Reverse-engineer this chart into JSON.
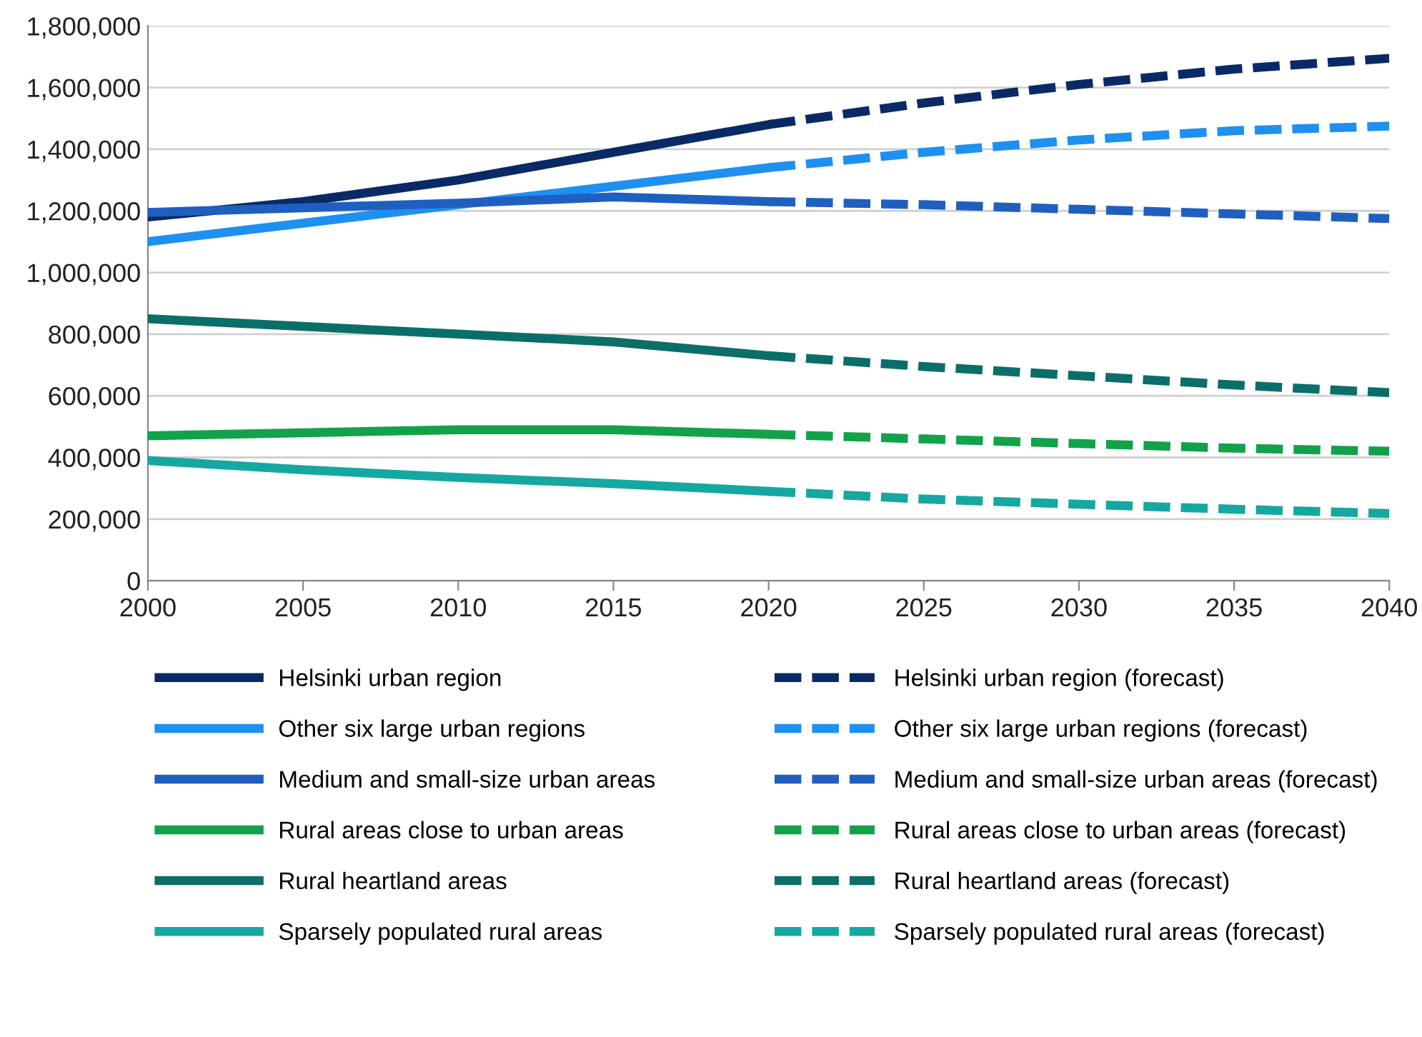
{
  "chart_data": {
    "type": "line",
    "xlim": [
      2000,
      2040
    ],
    "xticks": [
      2000,
      2005,
      2010,
      2015,
      2020,
      2025,
      2030,
      2035,
      2040
    ],
    "ylim": [
      0,
      1800000
    ],
    "yticks": [
      0,
      {
        "value": 200000,
        "label": "200,000"
      },
      {
        "value": 400000,
        "label": "400,000"
      },
      {
        "value": 600000,
        "label": "600,000"
      },
      {
        "value": 800000,
        "label": "800,000"
      },
      {
        "value": 1000000,
        "label": "1,000,000"
      },
      {
        "value": 1200000,
        "label": "1,200,000"
      },
      {
        "value": 1400000,
        "label": "1,400,000"
      },
      {
        "value": 1600000,
        "label": "1,600,000"
      },
      {
        "value": 1800000,
        "label": "1,800,000"
      }
    ],
    "grid": "y",
    "legend": "bottom",
    "marker": "none",
    "series": [
      {
        "name": "Helsinki urban region",
        "color": "#0a2a66",
        "line_style": "solid",
        "x": [
          2000,
          2005,
          2010,
          2015,
          2020
        ],
        "values": [
          1180000,
          1230000,
          1300000,
          1390000,
          1480000
        ]
      },
      {
        "name": "Other six large urban regions",
        "color": "#1e90f0",
        "line_style": "solid",
        "x": [
          2000,
          2005,
          2010,
          2015,
          2020
        ],
        "values": [
          1100000,
          1160000,
          1220000,
          1280000,
          1340000
        ]
      },
      {
        "name": "Medium and small-size urban areas",
        "color": "#1f5fc0",
        "line_style": "solid",
        "x": [
          2000,
          2005,
          2010,
          2015,
          2020
        ],
        "values": [
          1195000,
          1210000,
          1225000,
          1245000,
          1230000
        ]
      },
      {
        "name": "Rural areas close to urban areas",
        "color": "#12a24a",
        "line_style": "solid",
        "x": [
          2000,
          2005,
          2010,
          2015,
          2020
        ],
        "values": [
          470000,
          480000,
          490000,
          490000,
          475000
        ]
      },
      {
        "name": "Rural heartland areas",
        "color": "#0b6e68",
        "line_style": "solid",
        "x": [
          2000,
          2005,
          2010,
          2015,
          2020
        ],
        "values": [
          850000,
          825000,
          800000,
          775000,
          730000
        ]
      },
      {
        "name": "Sparsely populated rural areas",
        "color": "#14a8a0",
        "line_style": "solid",
        "x": [
          2000,
          2005,
          2010,
          2015,
          2020
        ],
        "values": [
          390000,
          360000,
          335000,
          315000,
          290000
        ]
      },
      {
        "name": "Helsinki urban region (forecast)",
        "color": "#0a2a66",
        "line_style": "dashed",
        "x": [
          2020,
          2025,
          2030,
          2035,
          2040
        ],
        "values": [
          1480000,
          1550000,
          1610000,
          1660000,
          1695000
        ]
      },
      {
        "name": "Other six large urban regions (forecast)",
        "color": "#1e90f0",
        "line_style": "dashed",
        "x": [
          2020,
          2025,
          2030,
          2035,
          2040
        ],
        "values": [
          1340000,
          1390000,
          1430000,
          1460000,
          1475000
        ]
      },
      {
        "name": "Medium and small-size urban areas (forecast)",
        "color": "#1f5fc0",
        "line_style": "dashed",
        "x": [
          2020,
          2025,
          2030,
          2035,
          2040
        ],
        "values": [
          1230000,
          1220000,
          1205000,
          1190000,
          1175000
        ]
      },
      {
        "name": "Rural areas close to urban areas (forecast)",
        "color": "#12a24a",
        "line_style": "dashed",
        "x": [
          2020,
          2025,
          2030,
          2035,
          2040
        ],
        "values": [
          475000,
          460000,
          445000,
          430000,
          420000
        ]
      },
      {
        "name": "Rural heartland areas (forecast)",
        "color": "#0b6e68",
        "line_style": "dashed",
        "x": [
          2020,
          2025,
          2030,
          2035,
          2040
        ],
        "values": [
          730000,
          695000,
          665000,
          635000,
          610000
        ]
      },
      {
        "name": "Sparsely populated rural areas (forecast)",
        "color": "#14a8a0",
        "line_style": "dashed",
        "x": [
          2020,
          2025,
          2030,
          2035,
          2040
        ],
        "values": [
          290000,
          265000,
          248000,
          232000,
          218000
        ]
      }
    ]
  }
}
